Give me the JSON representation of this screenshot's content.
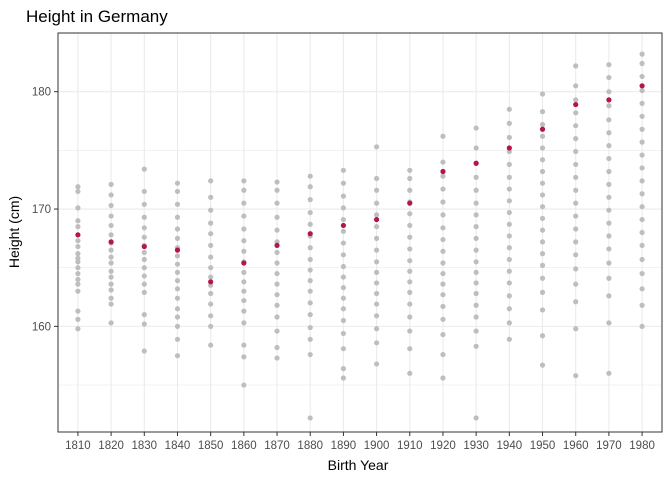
{
  "chart_data": {
    "type": "scatter",
    "title": "Height in Germany",
    "xlabel": "Birth Year",
    "ylabel": "Height (cm)",
    "x_categories": [
      "1810",
      "1820",
      "1830",
      "1840",
      "1850",
      "1860",
      "1870",
      "1880",
      "1890",
      "1900",
      "1910",
      "1920",
      "1930",
      "1940",
      "1950",
      "1960",
      "1970",
      "1980"
    ],
    "yticks": [
      160,
      170,
      180
    ],
    "ylim": [
      151,
      185
    ],
    "grid": true,
    "legend": "none",
    "colors": {
      "points": "#bebebe",
      "mean": "#b2164b",
      "grid": "#ebebeb",
      "border": "#333333"
    },
    "series": [
      {
        "values": [
          [
            159.8,
            160.6,
            161.3,
            163.0,
            163.6,
            164.0,
            164.5,
            165.0,
            165.5,
            165.8,
            166.2,
            166.8,
            167.3,
            168.5,
            169.0,
            170.1,
            171.5,
            171.9
          ],
          [
            160.3,
            161.9,
            162.4,
            163.1,
            163.6,
            164.2,
            164.7,
            165.4,
            165.9,
            166.5,
            167.1,
            167.8,
            168.6,
            169.4,
            170.3,
            171.2,
            172.1
          ],
          [
            157.9,
            160.2,
            161.0,
            162.9,
            163.6,
            164.3,
            165.0,
            165.7,
            166.3,
            166.9,
            167.6,
            168.4,
            169.3,
            170.4,
            171.5,
            173.4
          ],
          [
            157.5,
            158.9,
            160.0,
            160.8,
            161.5,
            162.4,
            163.2,
            163.9,
            164.6,
            165.3,
            166.0,
            166.7,
            167.5,
            168.3,
            169.3,
            170.4,
            171.5,
            172.2
          ],
          [
            158.4,
            160.0,
            160.9,
            161.9,
            162.8,
            163.5,
            164.2,
            165.0,
            165.9,
            166.9,
            167.9,
            168.8,
            169.9,
            171.0,
            172.4
          ],
          [
            155.0,
            157.4,
            158.4,
            160.3,
            161.3,
            162.2,
            163.0,
            163.8,
            164.6,
            165.5,
            166.4,
            167.3,
            168.3,
            169.4,
            170.5,
            171.6,
            172.4
          ],
          [
            157.3,
            158.2,
            159.6,
            160.8,
            161.8,
            162.7,
            163.6,
            164.5,
            165.4,
            166.3,
            167.2,
            168.2,
            169.3,
            170.5,
            171.6,
            172.3
          ],
          [
            152.2,
            157.6,
            158.9,
            159.9,
            161.0,
            162.0,
            163.0,
            163.9,
            164.8,
            165.7,
            166.7,
            167.7,
            168.7,
            169.7,
            170.8,
            171.9,
            172.8
          ],
          [
            155.6,
            156.4,
            158.1,
            159.4,
            160.5,
            161.5,
            162.4,
            163.3,
            164.2,
            165.1,
            166.1,
            167.1,
            168.1,
            169.1,
            170.1,
            171.1,
            172.2,
            173.3
          ],
          [
            156.8,
            158.6,
            159.8,
            160.9,
            161.9,
            162.8,
            163.7,
            164.6,
            165.5,
            166.5,
            167.5,
            168.5,
            169.5,
            170.5,
            171.6,
            172.6,
            175.3
          ],
          [
            156.0,
            158.1,
            159.6,
            160.8,
            161.9,
            162.9,
            163.8,
            164.7,
            165.6,
            166.6,
            167.6,
            168.6,
            169.6,
            170.6,
            171.6,
            172.6,
            173.3
          ],
          [
            155.6,
            157.6,
            159.3,
            160.6,
            161.7,
            162.7,
            163.6,
            164.5,
            165.4,
            166.4,
            167.4,
            168.4,
            169.5,
            170.6,
            171.7,
            172.8,
            174.0,
            176.2
          ],
          [
            152.2,
            158.3,
            159.6,
            160.8,
            161.8,
            162.8,
            163.7,
            164.6,
            165.5,
            166.5,
            167.5,
            168.5,
            169.5,
            170.5,
            171.6,
            172.7,
            173.9,
            175.2,
            176.9
          ],
          [
            158.9,
            160.3,
            161.5,
            162.6,
            163.7,
            164.7,
            165.7,
            166.7,
            167.7,
            168.7,
            169.7,
            170.7,
            171.7,
            172.7,
            173.8,
            174.9,
            176.1,
            177.3,
            178.5
          ],
          [
            156.7,
            159.2,
            161.4,
            162.9,
            164.1,
            165.2,
            166.2,
            167.2,
            168.2,
            169.2,
            170.2,
            171.2,
            172.2,
            173.2,
            174.2,
            175.2,
            176.2,
            177.2,
            178.3,
            179.8
          ],
          [
            155.8,
            159.8,
            162.1,
            163.6,
            164.9,
            166.1,
            167.2,
            168.3,
            169.4,
            170.5,
            171.6,
            172.7,
            173.8,
            174.9,
            176.0,
            177.1,
            178.2,
            179.3,
            180.5,
            182.2
          ],
          [
            156.0,
            160.3,
            162.6,
            164.1,
            165.4,
            166.6,
            167.7,
            168.8,
            169.9,
            171.0,
            172.1,
            173.2,
            174.3,
            175.4,
            176.5,
            177.6,
            178.8,
            180.0,
            181.2,
            182.3
          ],
          [
            160.0,
            161.8,
            163.2,
            164.5,
            165.7,
            166.9,
            168.0,
            169.1,
            170.2,
            171.3,
            172.4,
            173.5,
            174.6,
            175.7,
            176.8,
            177.9,
            179.0,
            180.1,
            181.3,
            182.4,
            183.2
          ]
        ]
      },
      {
        "values": [
          167.8,
          167.2,
          166.8,
          166.5,
          163.8,
          165.4,
          166.9,
          167.9,
          168.6,
          169.1,
          170.5,
          173.2,
          173.9,
          175.2,
          176.8,
          178.9,
          179.3,
          180.5
        ]
      }
    ]
  }
}
